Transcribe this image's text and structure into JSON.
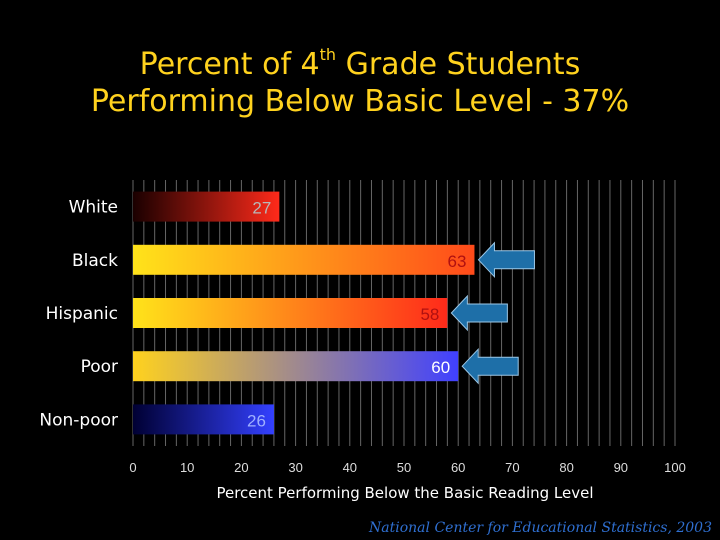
{
  "title": {
    "line1_pre": "Percent of 4",
    "line1_sup": "th",
    "line1_post": " Grade Students",
    "line2": "Performing Below Basic Level - 37%"
  },
  "source": "National Center for Educational Statistics, 2003",
  "chart_data": {
    "type": "bar",
    "orientation": "horizontal",
    "categories": [
      "White",
      "Black",
      "Hispanic",
      "Poor",
      "Non-poor"
    ],
    "values": [
      27,
      63,
      58,
      60,
      26
    ],
    "xlabel": "Percent Performing Below the Basic Reading Level",
    "ylabel": "",
    "xlim": [
      0,
      100
    ],
    "xticks": [
      0,
      10,
      20,
      30,
      40,
      50,
      60,
      70,
      80,
      90,
      100
    ],
    "grid": true,
    "highlighted_categories": [
      "Black",
      "Hispanic",
      "Poor"
    ],
    "colors": {
      "background": "#000000",
      "title": "#ffd21e",
      "label": "#ffffff",
      "grid": "#666666",
      "arrow": "#1e6fa8",
      "white_bar": [
        "#1a0000",
        "#ff2a1a"
      ],
      "black_bar": [
        "#ffe31a",
        "#ff4a1a"
      ],
      "hispanic_bar": [
        "#ffe31a",
        "#ff2a1a"
      ],
      "poor_bar": [
        "#ffd21e",
        "#4040ff"
      ],
      "nonpoor_bar": [
        "#000033",
        "#3340ff"
      ]
    }
  }
}
